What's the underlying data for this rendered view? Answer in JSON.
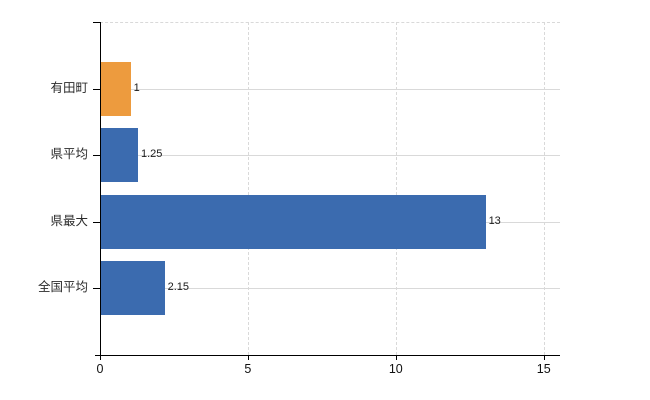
{
  "chart_data": {
    "type": "bar",
    "orientation": "horizontal",
    "title": "",
    "xlabel": "",
    "ylabel": "",
    "categories": [
      "有田町",
      "県平均",
      "県最大",
      "全国平均"
    ],
    "values": [
      1,
      1.25,
      13,
      2.15
    ],
    "value_labels": [
      "1",
      "1.25",
      "13",
      "2.15"
    ],
    "bar_colors": [
      "#ED9B3E",
      "#3B6BAF",
      "#3B6BAF",
      "#3B6BAF"
    ],
    "highlight_category": "有田町",
    "x_ticks": [
      0,
      5,
      10,
      15
    ],
    "x_tick_labels": [
      "0",
      "5",
      "10",
      "15"
    ],
    "xlim": [
      0,
      15.55
    ],
    "grid": true,
    "grid_vertical_style": "dashed",
    "grid_horizontal_style": "solid",
    "legend": "none"
  },
  "colors": {
    "background": "#ffffff",
    "bar_blue": "#3B6BAF",
    "bar_orange": "#ED9B3E",
    "grid": "#d9d9d9",
    "axis": "#000000",
    "category_text": "#2b2b2b",
    "value_text": "#1a1a1a",
    "tick_text": "#111111"
  }
}
